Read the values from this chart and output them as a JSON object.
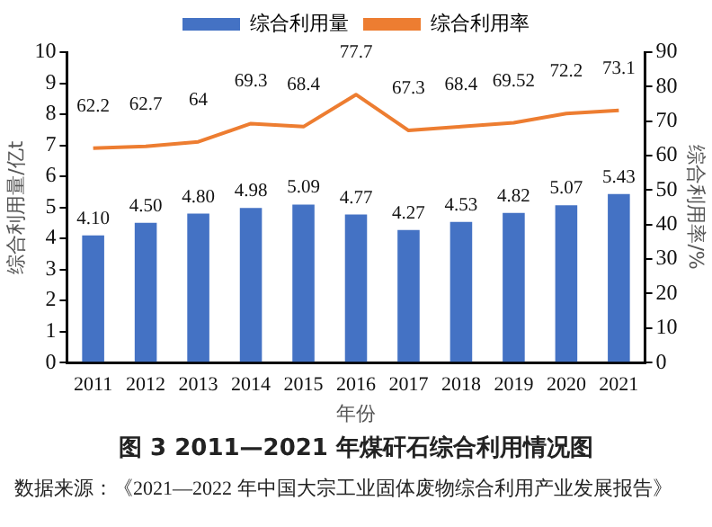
{
  "chart_data": {
    "type": "bar",
    "title": "图 3 2011—2021 年煤矸石综合利用情况图",
    "xlabel": "年份",
    "ylabel": "综合利用量/亿t",
    "y2label": "综合利用率/%",
    "categories": [
      "2011",
      "2012",
      "2013",
      "2014",
      "2015",
      "2016",
      "2017",
      "2018",
      "2019",
      "2020",
      "2021"
    ],
    "series": [
      {
        "name": "综合利用量",
        "color": "#4472c4",
        "values": [
          4.1,
          4.5,
          4.8,
          4.98,
          5.09,
          4.77,
          4.27,
          4.53,
          4.82,
          5.07,
          5.43
        ],
        "value_labels": [
          "4.10",
          "4.50",
          "4.80",
          "4.98",
          "5.09",
          "4.77",
          "4.27",
          "4.53",
          "4.82",
          "5.07",
          "5.43"
        ]
      },
      {
        "name": "综合利用率",
        "type": "line",
        "axis": "y2",
        "color": "#ed7d31",
        "values": [
          62.2,
          62.7,
          64,
          69.3,
          68.4,
          77.7,
          67.3,
          68.4,
          69.52,
          72.2,
          73.1
        ],
        "value_labels": [
          "62.2",
          "62.7",
          "64",
          "69.3",
          "68.4",
          "77.7",
          "67.3",
          "68.4",
          "69.52",
          "72.2",
          "73.1"
        ]
      }
    ],
    "ylim": [
      0,
      10
    ],
    "yticks": [
      0,
      1,
      2,
      3,
      4,
      5,
      6,
      7,
      8,
      9,
      10
    ],
    "y2lim": [
      0,
      90
    ],
    "y2ticks": [
      0,
      10,
      20,
      30,
      40,
      50,
      60,
      70,
      80,
      90
    ],
    "grid": false,
    "legend": "top",
    "marker": "none",
    "annotations": [
      "数据来源：《2021—2022 年中国大宗工业固体废物综合利用产业发展报告》"
    ]
  }
}
